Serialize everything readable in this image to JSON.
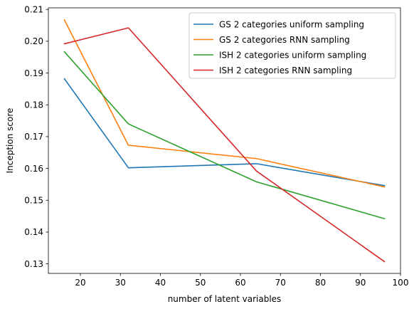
{
  "chart_data": {
    "type": "line",
    "title": "",
    "xlabel": "number of latent variables",
    "ylabel": "Inception score",
    "xlim": [
      12,
      100
    ],
    "ylim": [
      0.127,
      0.2105
    ],
    "xticks": [
      20,
      30,
      40,
      50,
      60,
      70,
      80,
      90,
      100
    ],
    "yticks": [
      0.13,
      0.14,
      0.15,
      0.16,
      0.17,
      0.18,
      0.19,
      0.2,
      0.21
    ],
    "xtick_labels": [
      "20",
      "30",
      "40",
      "50",
      "60",
      "70",
      "80",
      "90",
      "100"
    ],
    "ytick_labels": [
      "0.13",
      "0.14",
      "0.15",
      "0.16",
      "0.17",
      "0.18",
      "0.19",
      "0.20",
      "0.21"
    ],
    "grid": false,
    "legend_position": "top-right",
    "series": [
      {
        "name": "GS 2 categories uniform sampling",
        "color": "#1f77b4",
        "x": [
          16,
          32,
          64,
          96
        ],
        "y": [
          0.1882,
          0.1602,
          0.1615,
          0.1546
        ]
      },
      {
        "name": "GS 2 categories RNN sampling",
        "color": "#ff7f0e",
        "x": [
          16,
          32,
          64,
          96
        ],
        "y": [
          0.2067,
          0.1673,
          0.1631,
          0.1542
        ]
      },
      {
        "name": "ISH 2 categories uniform sampling",
        "color": "#2ca02c",
        "x": [
          16,
          32,
          64,
          96
        ],
        "y": [
          0.1967,
          0.174,
          0.1558,
          0.1442
        ]
      },
      {
        "name": "ISH 2 categories RNN sampling",
        "color": "#d62728",
        "x": [
          16,
          32,
          64,
          96
        ],
        "y": [
          0.1992,
          0.2042,
          0.1592,
          0.1307
        ]
      }
    ]
  }
}
